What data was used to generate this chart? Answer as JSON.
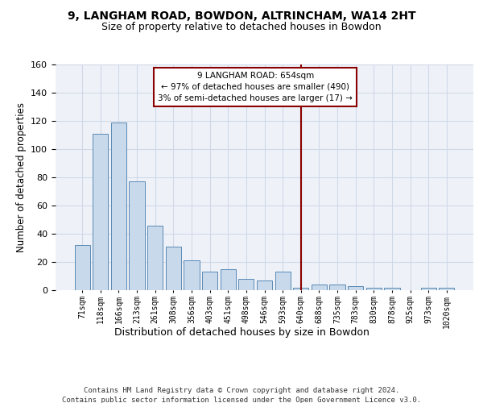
{
  "title1": "9, LANGHAM ROAD, BOWDON, ALTRINCHAM, WA14 2HT",
  "title2": "Size of property relative to detached houses in Bowdon",
  "xlabel": "Distribution of detached houses by size in Bowdon",
  "ylabel": "Number of detached properties",
  "categories": [
    "71sqm",
    "118sqm",
    "166sqm",
    "213sqm",
    "261sqm",
    "308sqm",
    "356sqm",
    "403sqm",
    "451sqm",
    "498sqm",
    "546sqm",
    "593sqm",
    "640sqm",
    "688sqm",
    "735sqm",
    "783sqm",
    "830sqm",
    "878sqm",
    "925sqm",
    "973sqm",
    "1020sqm"
  ],
  "values": [
    32,
    111,
    119,
    77,
    46,
    31,
    21,
    13,
    15,
    8,
    7,
    13,
    2,
    4,
    4,
    3,
    2,
    2,
    0,
    2,
    2
  ],
  "bar_color": "#c8d9eb",
  "bar_edge_color": "#5a8ab5",
  "vline_x_index": 12,
  "vline_color": "#8b0000",
  "annotation_text": "9 LANGHAM ROAD: 654sqm\n← 97% of detached houses are smaller (490)\n3% of semi-detached houses are larger (17) →",
  "annotation_box_color": "#8b0000",
  "ylim": [
    0,
    160
  ],
  "yticks": [
    0,
    20,
    40,
    60,
    80,
    100,
    120,
    140,
    160
  ],
  "grid_color": "#d0d8e8",
  "bg_color": "#eef2f8",
  "footer": "Contains HM Land Registry data © Crown copyright and database right 2024.\nContains public sector information licensed under the Open Government Licence v3.0.",
  "title_fontsize": 10,
  "subtitle_fontsize": 9,
  "title_fontweight": "bold"
}
